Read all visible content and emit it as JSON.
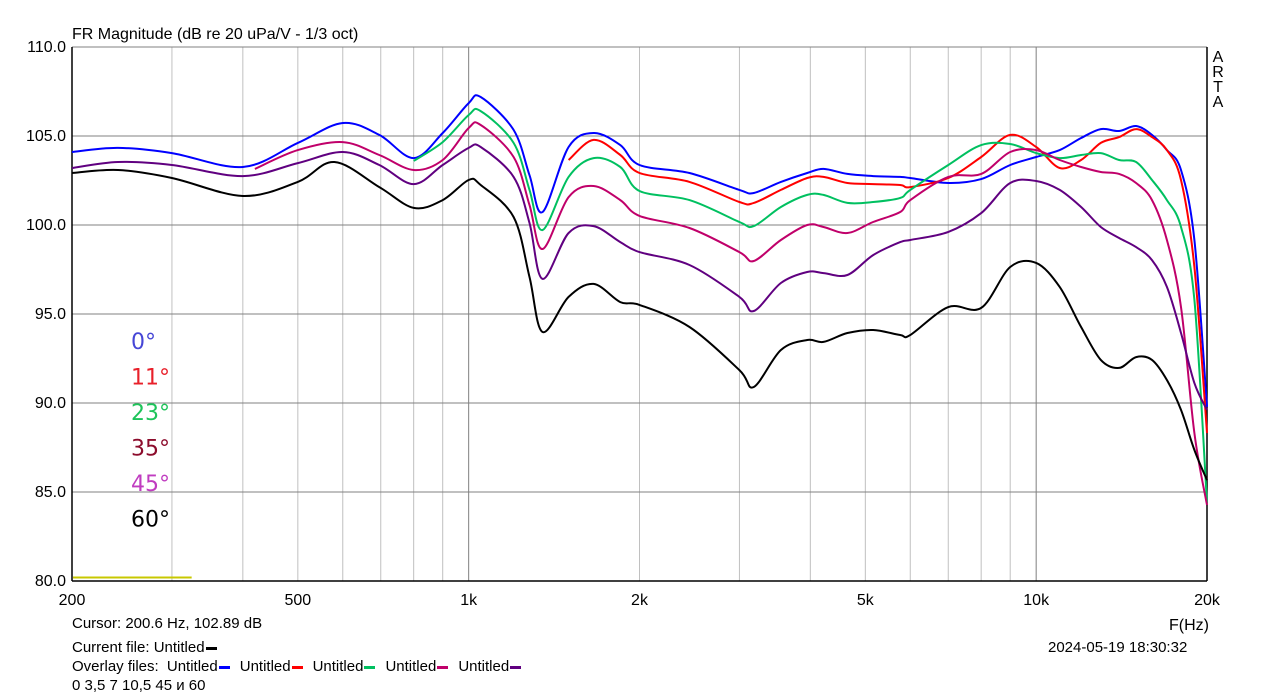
{
  "chart_data": {
    "type": "line",
    "title": "FR Magnitude (dB re 20 uPa/V - 1/3 oct)",
    "xlabel": "F(Hz)",
    "ylabel": "",
    "xscale": "log",
    "xlim": [
      200,
      20000
    ],
    "ylim": [
      80,
      110
    ],
    "grid": true,
    "watermark": "ARTA",
    "x_ticks": [
      {
        "v": 200,
        "label": "200"
      },
      {
        "v": 500,
        "label": "500"
      },
      {
        "v": 1000,
        "label": "1k"
      },
      {
        "v": 2000,
        "label": "2k"
      },
      {
        "v": 5000,
        "label": "5k"
      },
      {
        "v": 10000,
        "label": "10k"
      },
      {
        "v": 20000,
        "label": "20k"
      }
    ],
    "x_minor_grid": [
      300,
      400,
      500,
      600,
      700,
      800,
      900,
      1000,
      2000,
      3000,
      4000,
      5000,
      6000,
      7000,
      8000,
      9000,
      10000
    ],
    "y_ticks": [
      {
        "v": 110,
        "label": "110.0"
      },
      {
        "v": 105,
        "label": "105.0"
      },
      {
        "v": 100,
        "label": "100.0"
      },
      {
        "v": 95,
        "label": "95.0"
      },
      {
        "v": 90,
        "label": "90.0"
      },
      {
        "v": 85,
        "label": "85.0"
      },
      {
        "v": 80,
        "label": "80.0"
      }
    ],
    "legend": [
      {
        "label": "0°",
        "color": "#4646d6"
      },
      {
        "label": "11°",
        "color": "#e8202a"
      },
      {
        "label": "23°",
        "color": "#1ec45a"
      },
      {
        "label": "35°",
        "color": "#8c0c2c"
      },
      {
        "label": "45°",
        "color": "#c03cc0"
      },
      {
        "label": "60°",
        "color": "#000000"
      }
    ],
    "marker_line": {
      "color": "#c8c800",
      "x": [
        200,
        325
      ],
      "y": 80.2
    },
    "series": [
      {
        "color": "#0000ff",
        "points": [
          [
            200,
            104.1
          ],
          [
            241,
            104.33
          ],
          [
            300,
            104.04
          ],
          [
            400,
            103.26
          ],
          [
            500,
            104.61
          ],
          [
            600,
            105.73
          ],
          [
            696,
            105.06
          ],
          [
            800,
            103.76
          ],
          [
            900,
            105.17
          ],
          [
            1000,
            106.85
          ],
          [
            1050,
            107.19
          ],
          [
            1200,
            105.34
          ],
          [
            1280,
            102.8
          ],
          [
            1350,
            100.73
          ],
          [
            1500,
            104.38
          ],
          [
            1660,
            105.17
          ],
          [
            1850,
            104.49
          ],
          [
            2000,
            103.37
          ],
          [
            2450,
            102.92
          ],
          [
            3000,
            101.97
          ],
          [
            3180,
            101.8
          ],
          [
            3550,
            102.42
          ],
          [
            3950,
            102.92
          ],
          [
            4220,
            103.15
          ],
          [
            4650,
            102.87
          ],
          [
            5160,
            102.75
          ],
          [
            5760,
            102.7
          ],
          [
            6000,
            102.64
          ],
          [
            7000,
            102.36
          ],
          [
            8000,
            102.58
          ],
          [
            9000,
            103.37
          ],
          [
            10000,
            103.82
          ],
          [
            11000,
            104.21
          ],
          [
            12000,
            104.89
          ],
          [
            13000,
            105.39
          ],
          [
            14000,
            105.28
          ],
          [
            15000,
            105.56
          ],
          [
            16000,
            105.06
          ],
          [
            17000,
            104.21
          ],
          [
            18000,
            103.09
          ],
          [
            19000,
            99.16
          ],
          [
            20000,
            89.78
          ]
        ]
      },
      {
        "color": "#ff0000",
        "points": [
          [
            1500,
            103.65
          ],
          [
            1660,
            104.78
          ],
          [
            1850,
            103.93
          ],
          [
            2000,
            102.92
          ],
          [
            2450,
            102.42
          ],
          [
            3000,
            101.29
          ],
          [
            3180,
            101.24
          ],
          [
            3550,
            101.97
          ],
          [
            3950,
            102.64
          ],
          [
            4220,
            102.7
          ],
          [
            4650,
            102.36
          ],
          [
            5160,
            102.3
          ],
          [
            5760,
            102.25
          ],
          [
            6000,
            102.13
          ],
          [
            7000,
            102.64
          ],
          [
            8000,
            103.82
          ],
          [
            9000,
            105.06
          ],
          [
            10000,
            104.38
          ],
          [
            11000,
            103.2
          ],
          [
            12000,
            103.65
          ],
          [
            13000,
            104.61
          ],
          [
            14000,
            104.94
          ],
          [
            15000,
            105.39
          ],
          [
            16000,
            104.94
          ],
          [
            17000,
            104.21
          ],
          [
            18000,
            102.53
          ],
          [
            19000,
            97.64
          ],
          [
            20000,
            88.31
          ]
        ]
      },
      {
        "color": "#00c060",
        "points": [
          [
            800,
            103.6
          ],
          [
            900,
            104.66
          ],
          [
            1000,
            106.18
          ],
          [
            1050,
            106.4
          ],
          [
            1200,
            104.61
          ],
          [
            1280,
            101.97
          ],
          [
            1350,
            99.72
          ],
          [
            1500,
            102.7
          ],
          [
            1660,
            103.76
          ],
          [
            1850,
            103.26
          ],
          [
            2000,
            101.91
          ],
          [
            2450,
            101.4
          ],
          [
            3000,
            100.17
          ],
          [
            3180,
            99.94
          ],
          [
            3550,
            101.01
          ],
          [
            3950,
            101.69
          ],
          [
            4220,
            101.69
          ],
          [
            4650,
            101.24
          ],
          [
            5160,
            101.29
          ],
          [
            5760,
            101.52
          ],
          [
            6000,
            101.97
          ],
          [
            7000,
            103.37
          ],
          [
            8000,
            104.49
          ],
          [
            9000,
            104.55
          ],
          [
            10000,
            104.04
          ],
          [
            11000,
            103.76
          ],
          [
            12000,
            103.93
          ],
          [
            13000,
            104.04
          ],
          [
            14000,
            103.65
          ],
          [
            15000,
            103.54
          ],
          [
            16000,
            102.53
          ],
          [
            17000,
            101.4
          ],
          [
            18000,
            99.89
          ],
          [
            19000,
            95.79
          ],
          [
            20000,
            84.38
          ]
        ]
      },
      {
        "color": "#c0006a",
        "points": [
          [
            420,
            103.15
          ],
          [
            500,
            104.21
          ],
          [
            600,
            104.66
          ],
          [
            696,
            103.93
          ],
          [
            800,
            103.09
          ],
          [
            900,
            103.65
          ],
          [
            1000,
            105.45
          ],
          [
            1050,
            105.62
          ],
          [
            1200,
            103.82
          ],
          [
            1280,
            101.12
          ],
          [
            1350,
            98.65
          ],
          [
            1500,
            101.57
          ],
          [
            1660,
            102.19
          ],
          [
            1850,
            101.4
          ],
          [
            2000,
            100.51
          ],
          [
            2450,
            99.83
          ],
          [
            3000,
            98.48
          ],
          [
            3180,
            97.98
          ],
          [
            3550,
            99.16
          ],
          [
            3950,
            100.0
          ],
          [
            4220,
            99.89
          ],
          [
            4650,
            99.55
          ],
          [
            5160,
            100.17
          ],
          [
            5760,
            100.73
          ],
          [
            6000,
            101.4
          ],
          [
            7000,
            102.7
          ],
          [
            8000,
            102.87
          ],
          [
            9000,
            104.1
          ],
          [
            10000,
            104.21
          ],
          [
            11000,
            103.65
          ],
          [
            12000,
            103.26
          ],
          [
            13000,
            102.98
          ],
          [
            14000,
            102.87
          ],
          [
            15000,
            102.36
          ],
          [
            16000,
            101.4
          ],
          [
            17000,
            99.16
          ],
          [
            18000,
            95.39
          ],
          [
            19000,
            88.31
          ],
          [
            20000,
            84.27
          ]
        ]
      },
      {
        "color": "#600080",
        "points": [
          [
            200,
            103.2
          ],
          [
            241,
            103.54
          ],
          [
            300,
            103.37
          ],
          [
            400,
            102.75
          ],
          [
            500,
            103.48
          ],
          [
            600,
            104.1
          ],
          [
            696,
            103.37
          ],
          [
            800,
            102.3
          ],
          [
            900,
            103.37
          ],
          [
            1000,
            104.33
          ],
          [
            1050,
            104.38
          ],
          [
            1200,
            102.7
          ],
          [
            1280,
            100.11
          ],
          [
            1350,
            96.97
          ],
          [
            1500,
            99.55
          ],
          [
            1660,
            99.94
          ],
          [
            1850,
            99.04
          ],
          [
            2000,
            98.48
          ],
          [
            2450,
            97.75
          ],
          [
            3000,
            95.96
          ],
          [
            3180,
            95.17
          ],
          [
            3550,
            96.74
          ],
          [
            3950,
            97.36
          ],
          [
            4220,
            97.3
          ],
          [
            4650,
            97.19
          ],
          [
            5160,
            98.31
          ],
          [
            5760,
            99.04
          ],
          [
            6000,
            99.16
          ],
          [
            7000,
            99.61
          ],
          [
            8000,
            100.67
          ],
          [
            9000,
            102.36
          ],
          [
            10000,
            102.47
          ],
          [
            11000,
            101.97
          ],
          [
            12000,
            101.01
          ],
          [
            13000,
            99.89
          ],
          [
            14000,
            99.27
          ],
          [
            15000,
            98.76
          ],
          [
            16000,
            98.03
          ],
          [
            17000,
            96.52
          ],
          [
            18000,
            93.93
          ],
          [
            19000,
            91.12
          ],
          [
            20000,
            89.61
          ]
        ]
      },
      {
        "color": "#000000",
        "points": [
          [
            200,
            102.92
          ],
          [
            241,
            103.09
          ],
          [
            300,
            102.64
          ],
          [
            400,
            101.63
          ],
          [
            500,
            102.42
          ],
          [
            580,
            103.54
          ],
          [
            696,
            102.13
          ],
          [
            800,
            100.96
          ],
          [
            900,
            101.4
          ],
          [
            1000,
            102.53
          ],
          [
            1050,
            102.25
          ],
          [
            1200,
            100.45
          ],
          [
            1280,
            97.08
          ],
          [
            1350,
            93.99
          ],
          [
            1500,
            95.96
          ],
          [
            1660,
            96.69
          ],
          [
            1850,
            95.67
          ],
          [
            2000,
            95.51
          ],
          [
            2450,
            94.27
          ],
          [
            3000,
            91.85
          ],
          [
            3180,
            90.9
          ],
          [
            3550,
            92.98
          ],
          [
            3950,
            93.54
          ],
          [
            4220,
            93.43
          ],
          [
            4650,
            93.93
          ],
          [
            5160,
            94.1
          ],
          [
            5760,
            93.82
          ],
          [
            6000,
            93.82
          ],
          [
            7000,
            95.39
          ],
          [
            8000,
            95.34
          ],
          [
            9000,
            97.64
          ],
          [
            10000,
            97.87
          ],
          [
            11000,
            96.52
          ],
          [
            12000,
            94.27
          ],
          [
            13000,
            92.42
          ],
          [
            14000,
            91.97
          ],
          [
            15000,
            92.58
          ],
          [
            16000,
            92.42
          ],
          [
            17000,
            91.29
          ],
          [
            18000,
            89.61
          ],
          [
            19000,
            87.36
          ],
          [
            20000,
            85.67
          ]
        ]
      }
    ]
  },
  "footer": {
    "cursor": "Cursor: 200.6 Hz, 102.89 dB",
    "current_file_label": "Current file: Untitled",
    "current_file_color": "#000000",
    "overlay_label": "Overlay files:",
    "overlays": [
      {
        "name": "Untitled",
        "color": "#0000ff"
      },
      {
        "name": "Untitled",
        "color": "#ff0000"
      },
      {
        "name": "Untitled",
        "color": "#00c060"
      },
      {
        "name": "Untitled",
        "color": "#c0006a"
      },
      {
        "name": "Untitled",
        "color": "#600080"
      }
    ],
    "note": "0 3,5 7 10,5 45 и 60",
    "datetime": "2024-05-19  18:30:32"
  }
}
